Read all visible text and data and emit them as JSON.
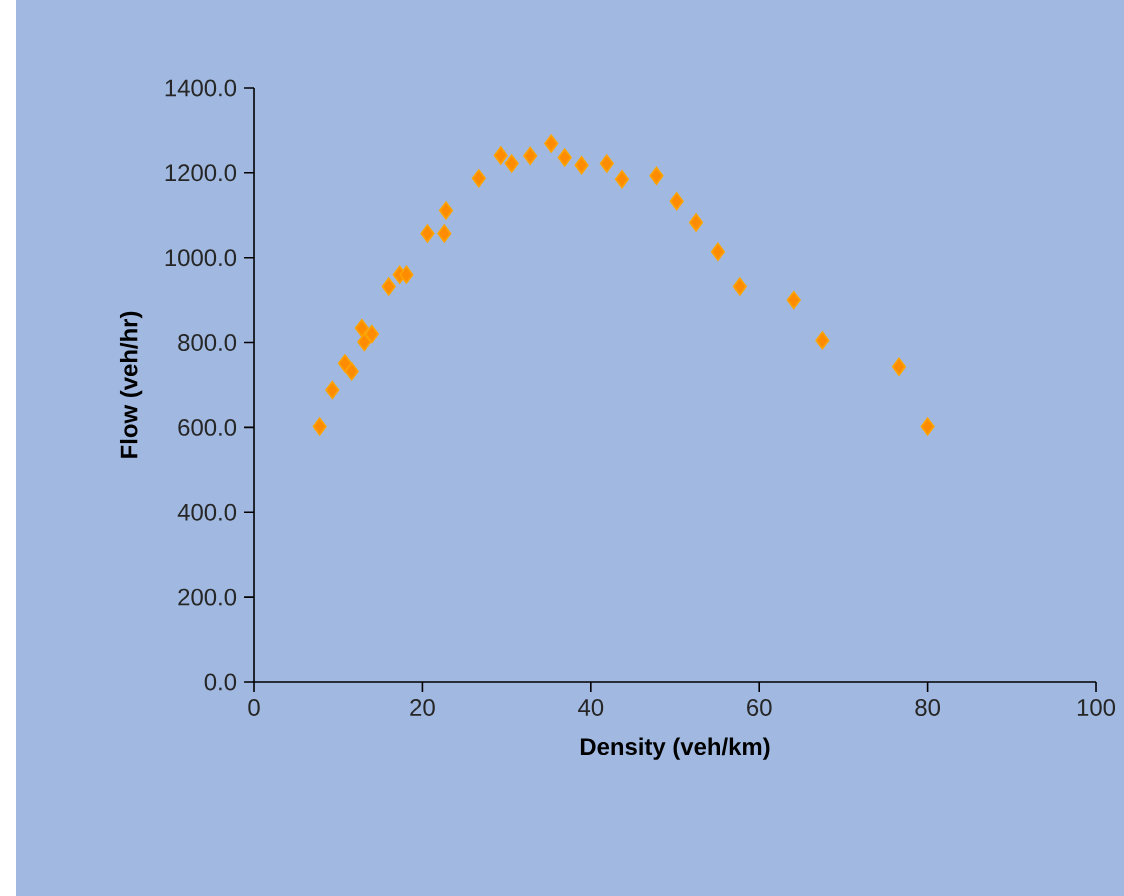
{
  "chart_data": {
    "type": "scatter",
    "xlabel": "Density (veh/km)",
    "ylabel": "Flow (veh/hr)",
    "x": [
      7.8,
      9.3,
      10.8,
      11.6,
      12.8,
      13.1,
      14.0,
      16.0,
      17.3,
      18.1,
      20.6,
      22.6,
      22.8,
      26.7,
      29.3,
      30.6,
      32.8,
      35.3,
      36.9,
      38.9,
      41.9,
      43.7,
      47.8,
      50.2,
      52.5,
      55.1,
      57.7,
      64.1,
      67.5,
      76.6,
      80.0
    ],
    "values": [
      602,
      688,
      751,
      732,
      834,
      801,
      820,
      932,
      960,
      960,
      1057,
      1057,
      1111,
      1187,
      1241,
      1222,
      1240,
      1269,
      1236,
      1218,
      1222,
      1185,
      1193,
      1133,
      1083,
      1014,
      932,
      900,
      805,
      743,
      602
    ],
    "color": "#ff8c00",
    "marker": "diamond",
    "grid": false,
    "xlim": [
      0,
      100
    ],
    "xticks": [
      0,
      20,
      40,
      60,
      80,
      100
    ],
    "ylim": [
      0,
      1400
    ],
    "yticks": [
      {
        "value": 0,
        "label": "0.0"
      },
      {
        "value": 200,
        "label": "200.0"
      },
      {
        "value": 400,
        "label": "400.0"
      },
      {
        "value": 600,
        "label": "600.0"
      },
      {
        "value": 800,
        "label": "800.0"
      },
      {
        "value": 1000,
        "label": "1000.0"
      },
      {
        "value": 1200,
        "label": "1200.0"
      },
      {
        "value": 1400,
        "label": "1400.0"
      }
    ]
  }
}
